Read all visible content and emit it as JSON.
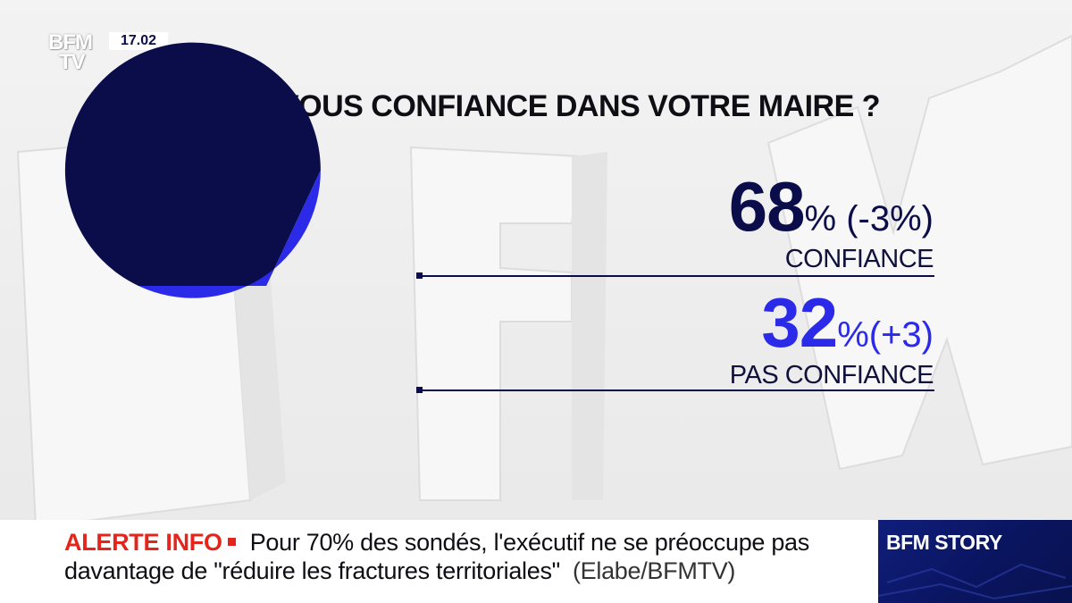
{
  "broadcast": {
    "logo_line1": "BFM",
    "logo_line2": "TV",
    "time": "17.02"
  },
  "question": "AVEZ-VOUS CONFIANCE DANS VOTRE MAIRE ?",
  "results": [
    {
      "value": "68",
      "suffix": "% (-3%)",
      "label": "CONFIANCE"
    },
    {
      "value": "32",
      "suffix": "%(+3)",
      "label": "PAS CONFIANCE"
    }
  ],
  "ticker": {
    "label": "ALERTE INFO",
    "line1": "Pour 70% des sondés, l'exécutif ne se préoccupe pas",
    "line2": "davantage de \"réduire les fractures territoriales\"",
    "source": "(Elabe/BFMTV)"
  },
  "channel_badge": "BFM STORY",
  "colors": {
    "confiance": "#0a0d4a",
    "pas_confiance": "#2a2ae8",
    "alert": "#e3251c",
    "badge": "#0a1560"
  },
  "chart_data": {
    "type": "pie",
    "title": "AVEZ-VOUS CONFIANCE DANS VOTRE MAIRE ?",
    "categories": [
      "CONFIANCE",
      "PAS CONFIANCE"
    ],
    "values": [
      68,
      32
    ],
    "changes": [
      "-3%",
      "+3"
    ],
    "unit": "%"
  }
}
